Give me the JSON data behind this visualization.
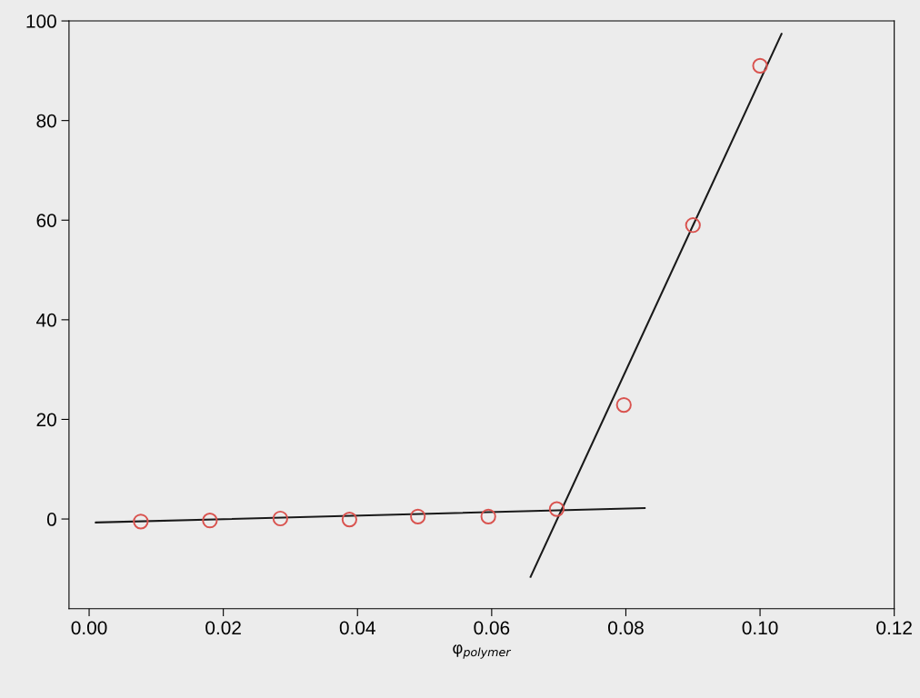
{
  "chart_data": {
    "type": "scatter",
    "xlabel": "φ$_{polymer}$",
    "xlim": [
      -0.003,
      0.12
    ],
    "xticks": [
      {
        "value": 0,
        "label": "0.00"
      },
      0.02,
      0.04,
      0.06,
      0.08,
      {
        "value": 0.1,
        "label": "0.10"
      },
      0.12
    ],
    "ylim": [
      -18,
      100
    ],
    "yticks": [
      0,
      20,
      40,
      60,
      80,
      100
    ],
    "grid": false,
    "marker": "circle",
    "series": [
      {
        "color": "#d9534f",
        "x": [
          0.0077,
          0.018,
          0.0285,
          0.0388,
          0.049,
          0.0595,
          0.0697,
          0.0797,
          0.09,
          0.1
        ],
        "values": [
          -0.5,
          -0.3,
          0.1,
          -0.1,
          0.5,
          0.5,
          2.0,
          22.9,
          59,
          91
        ]
      },
      {
        "type": "line",
        "color": "#1a1a1a",
        "x": [
          0.001,
          0.0828
        ],
        "values": [
          -0.7,
          2.2
        ],
        "marker": "none"
      },
      {
        "type": "line",
        "color": "#1a1a1a",
        "x": [
          0.0658,
          0.1032
        ],
        "values": [
          -11.6,
          97.4
        ],
        "marker": "none"
      }
    ]
  }
}
